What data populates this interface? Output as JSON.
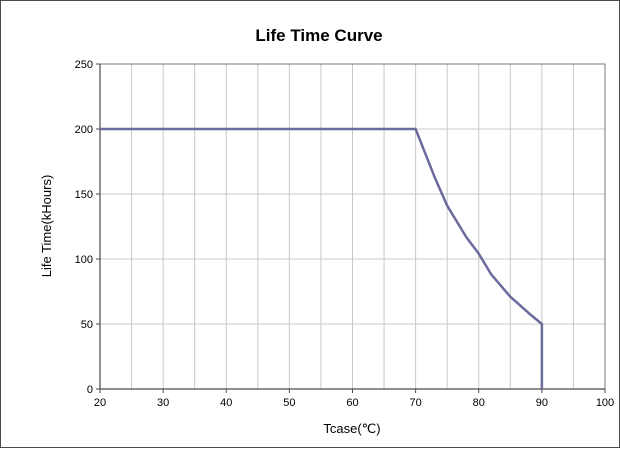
{
  "chart_data": {
    "type": "line",
    "title": "Life Time Curve",
    "xlabel": "Tcase(℃)",
    "ylabel": "Life Time(kHours)",
    "xlim": [
      20,
      100
    ],
    "ylim": [
      0,
      250
    ],
    "x_ticks": [
      20,
      30,
      40,
      50,
      60,
      70,
      80,
      90,
      100
    ],
    "y_ticks": [
      0,
      50,
      100,
      150,
      200,
      250
    ],
    "x_minor_step": 5,
    "grid": true,
    "legend": "none",
    "series": [
      {
        "color": "#6b6b9e",
        "x": [
          20,
          70,
          73,
          75,
          78,
          80,
          82,
          85,
          88,
          90,
          90
        ],
        "y": [
          200,
          200,
          163,
          141,
          117,
          104,
          88,
          71,
          58,
          50,
          0
        ]
      }
    ],
    "colors": {
      "grid": "#c8c8c8",
      "axis": "#4a4a4a",
      "plot_border": "#7a7a7a"
    }
  }
}
